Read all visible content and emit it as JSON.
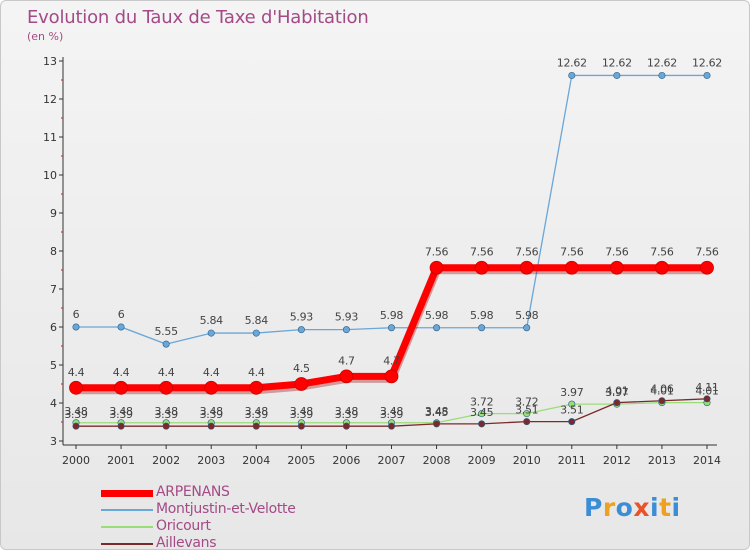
{
  "title": "Evolution du Taux de Taxe d'Habitation",
  "subtitle": "(en %)",
  "logo": {
    "text": "Proxiti",
    "letters": [
      "P",
      "r",
      "o",
      "x",
      "i",
      "t",
      "i"
    ],
    "colors": [
      "#3b8dd6",
      "#f0a020",
      "#3b8dd6",
      "#e8532a",
      "#3b8dd6",
      "#f0a020",
      "#3b8dd6"
    ]
  },
  "legend": [
    {
      "label": "ARPENANS",
      "color": "#ff0000",
      "thickness": 7
    },
    {
      "label": "Montjustin-et-Velotte",
      "color": "#6aa6d6",
      "thickness": 2
    },
    {
      "label": "Oricourt",
      "color": "#99dd77",
      "thickness": 2
    },
    {
      "label": "Aillevans",
      "color": "#7a2a2a",
      "thickness": 2
    }
  ],
  "chart_data": {
    "type": "line",
    "title": "Evolution du Taux de Taxe d'Habitation",
    "ylabel": "(en %)",
    "xlabel": "",
    "x": [
      "2000",
      "2001",
      "2002",
      "2003",
      "2004",
      "2005",
      "2006",
      "2007",
      "2008",
      "2009",
      "2010",
      "2011",
      "2012",
      "2013",
      "2014"
    ],
    "ylim": [
      3,
      13
    ],
    "yticks": [
      "3",
      "4",
      "5",
      "6",
      "7",
      "8",
      "9",
      "10",
      "11",
      "12",
      "13"
    ],
    "grid": false,
    "legend_position": "bottom-left",
    "series": [
      {
        "name": "ARPENANS",
        "color": "#ff0000",
        "values": [
          4.4,
          4.4,
          4.4,
          4.4,
          4.4,
          4.5,
          4.7,
          4.7,
          7.56,
          7.56,
          7.56,
          7.56,
          7.56,
          7.56,
          7.56
        ],
        "labels": [
          "4.4",
          "4.4",
          "4.4",
          "4.4",
          "4.4",
          "4.5",
          "4.7",
          "4.7",
          "7.56",
          "7.56",
          "7.56",
          "7.56",
          "7.56",
          "7.56",
          "7.56"
        ]
      },
      {
        "name": "Montjustin-et-Velotte",
        "color": "#6aa6d6",
        "values": [
          6,
          6,
          5.55,
          5.84,
          5.84,
          5.93,
          5.93,
          5.98,
          5.98,
          5.98,
          5.98,
          12.62,
          12.62,
          12.62,
          12.62
        ],
        "labels": [
          "6",
          "6",
          "5.55",
          "5.84",
          "5.84",
          "5.93",
          "5.93",
          "5.98",
          "5.98",
          "5.98",
          "5.98",
          "12.62",
          "12.62",
          "12.62",
          "12.62"
        ]
      },
      {
        "name": "Oricourt",
        "color": "#99dd77",
        "values": [
          3.48,
          3.48,
          3.48,
          3.48,
          3.48,
          3.48,
          3.48,
          3.48,
          3.48,
          3.72,
          3.72,
          3.97,
          3.97,
          4.01,
          4.01
        ],
        "labels": [
          "3.48",
          "3.48",
          "3.48",
          "3.48",
          "3.48",
          "3.48",
          "3.48",
          "3.48",
          "3.48",
          "3.72",
          "3.72",
          "3.97",
          "3.97",
          "4.01",
          "4.01"
        ]
      },
      {
        "name": "Aillevans",
        "color": "#7a2a2a",
        "values": [
          3.39,
          3.39,
          3.39,
          3.39,
          3.39,
          3.39,
          3.39,
          3.39,
          3.45,
          3.45,
          3.51,
          3.51,
          4.01,
          4.06,
          4.11
        ],
        "labels": [
          "3.39",
          "3.39",
          "3.39",
          "3.39",
          "3.39",
          "3.39",
          "3.39",
          "3.39",
          "3.45",
          "3.45",
          "3.51",
          "3.51",
          "4.01",
          "4.06",
          "4.11"
        ]
      }
    ]
  }
}
